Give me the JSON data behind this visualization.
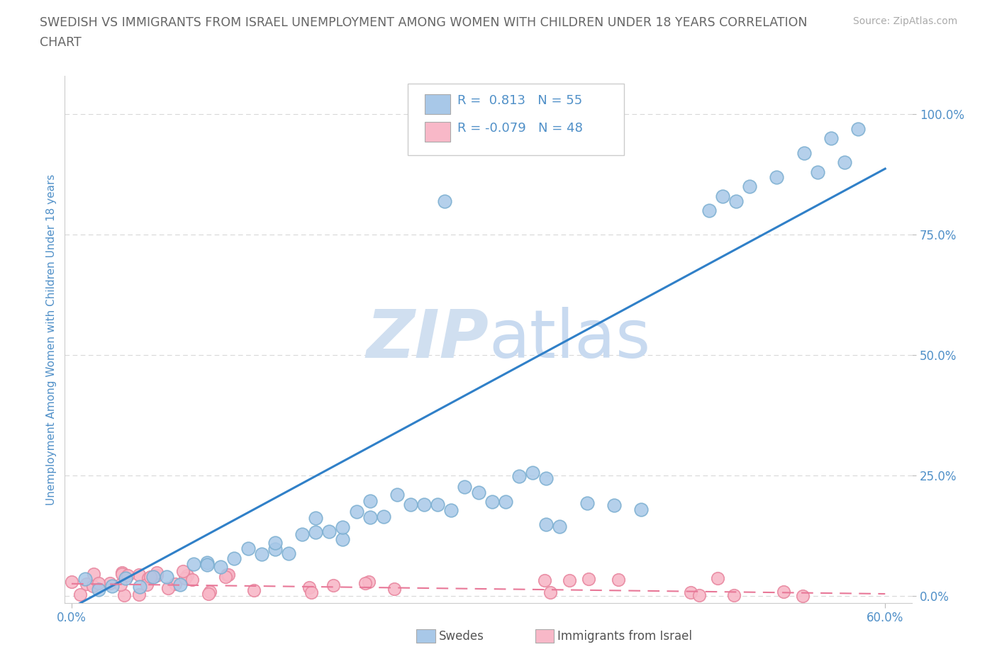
{
  "title_line1": "SWEDISH VS IMMIGRANTS FROM ISRAEL UNEMPLOYMENT AMONG WOMEN WITH CHILDREN UNDER 18 YEARS CORRELATION",
  "title_line2": "CHART",
  "source": "Source: ZipAtlas.com",
  "ylabel": "Unemployment Among Women with Children Under 18 years",
  "ytick_labels": [
    "0.0%",
    "25.0%",
    "50.0%",
    "75.0%",
    "100.0%"
  ],
  "ytick_values": [
    0.0,
    0.25,
    0.5,
    0.75,
    1.0
  ],
  "xtick_labels": [
    "0.0%",
    "60.0%"
  ],
  "xtick_values": [
    0.0,
    0.6
  ],
  "xlim": [
    -0.005,
    0.62
  ],
  "ylim": [
    -0.015,
    1.08
  ],
  "swedes_color": "#a8c8e8",
  "swedes_edge_color": "#7aaed0",
  "immigrants_color": "#f8b8c8",
  "immigrants_edge_color": "#e888a0",
  "trendline_swedes_color": "#3080c8",
  "trendline_immigrants_color": "#e87898",
  "watermark_color": "#d0dff0",
  "background_color": "#ffffff",
  "grid_color": "#d8d8d8",
  "title_color": "#666666",
  "axis_label_color": "#5090c8",
  "legend_color": "#5090c8",
  "source_color": "#aaaaaa"
}
